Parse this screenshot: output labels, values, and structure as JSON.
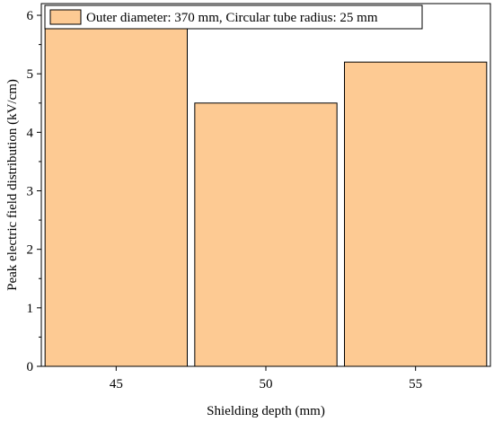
{
  "chart_data": {
    "type": "bar",
    "categories": [
      "45",
      "50",
      "55"
    ],
    "series": [
      {
        "name": "Outer diameter: 370 mm, Circular tube radius: 25 mm",
        "values": [
          5.9,
          4.5,
          5.2
        ]
      }
    ],
    "xlabel": "Shielding depth (mm)",
    "ylabel": "Peak electric field distribution (kV/cm)",
    "ylim": [
      0,
      6.2
    ],
    "yticks": [
      "0",
      "1",
      "2",
      "3",
      "4",
      "5",
      "6"
    ],
    "grid": false,
    "legend_position": "top-left",
    "colors": {
      "bar_fill": "#fdca93",
      "bar_stroke": "#000000"
    }
  }
}
